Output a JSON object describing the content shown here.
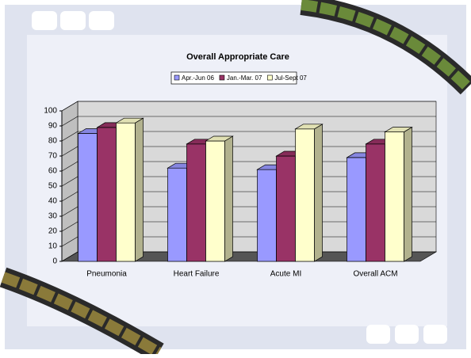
{
  "chart_data": {
    "type": "bar3d",
    "title": "Overall Appropriate Care",
    "categories": [
      "Pneumonia",
      "Heart Failure",
      "Acute MI",
      "Overall ACM"
    ],
    "series": [
      {
        "name": "Apr.-Jun 06",
        "color": "#9999ff",
        "values": [
          85,
          62,
          61,
          69
        ]
      },
      {
        "name": "Jan.-Mar. 07",
        "color": "#993366",
        "values": [
          89,
          78,
          70,
          78
        ]
      },
      {
        "name": "Jul-Sept 07",
        "color": "#ffffcc",
        "values": [
          92,
          80,
          88,
          86
        ]
      }
    ],
    "ylim": [
      0,
      100
    ],
    "yticks": [
      0,
      10,
      20,
      30,
      40,
      50,
      60,
      70,
      80,
      90,
      100
    ],
    "grid": true,
    "legend": "top"
  }
}
